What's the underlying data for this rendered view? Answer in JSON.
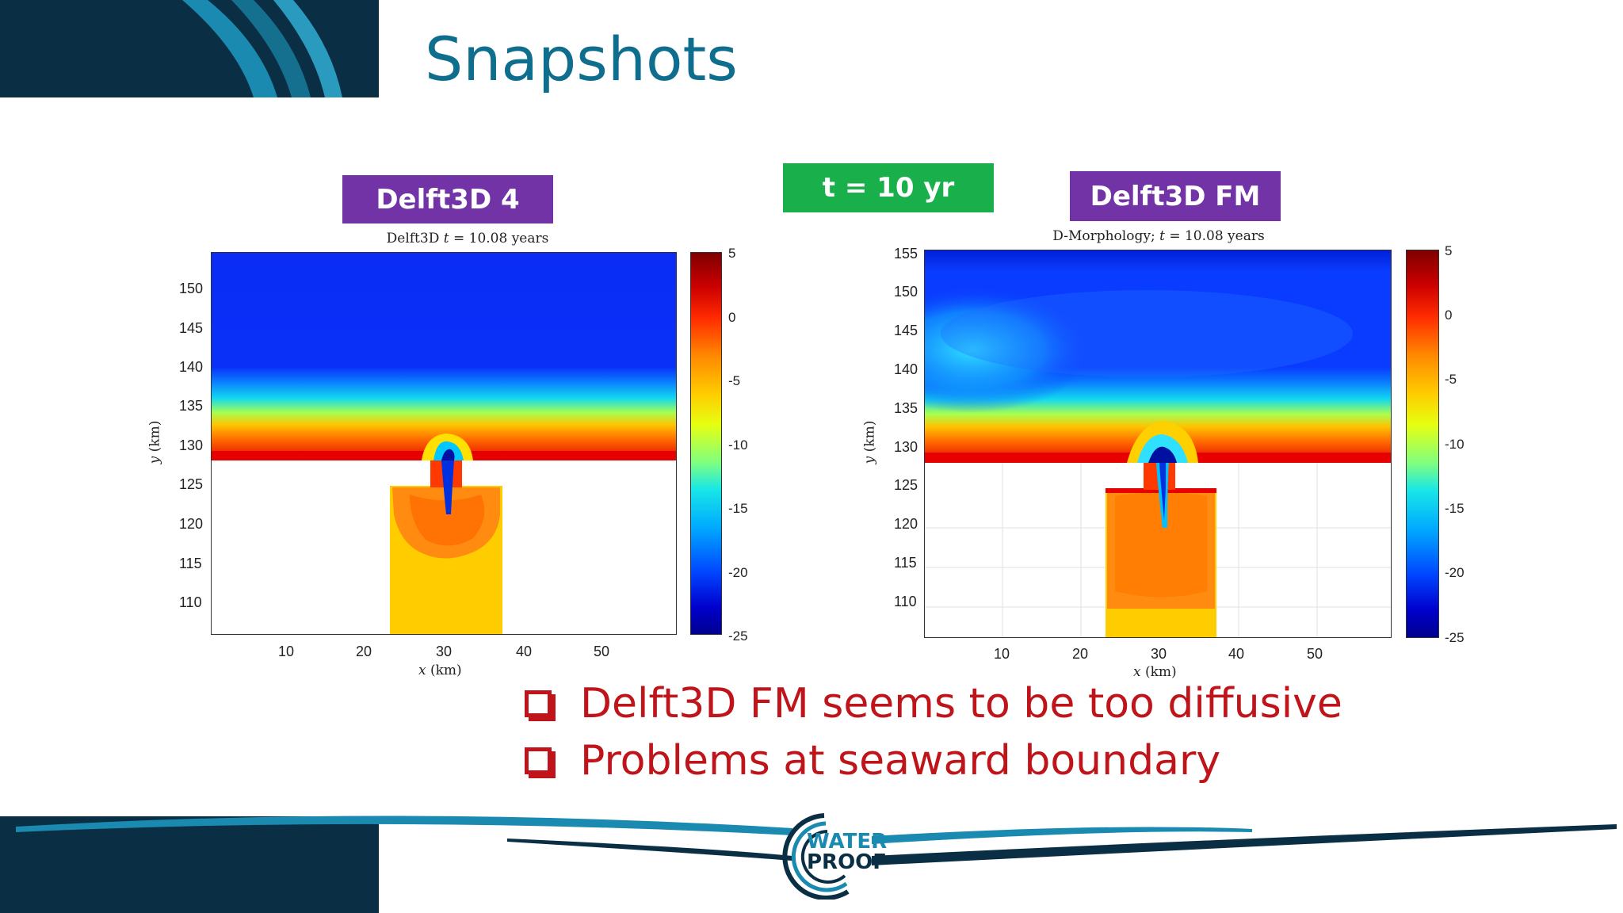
{
  "slide": {
    "title": "Snapshots"
  },
  "tags": {
    "left": "Delft3D 4",
    "center": "t = 10 yr",
    "right": "Delft3D FM"
  },
  "plots": {
    "left": {
      "title_model": "Delft3D",
      "title_t": "t",
      "title_rest": " = 10.08 years",
      "xlabel_var": "x",
      "xlabel_unit": " (km)",
      "ylabel_var": "y",
      "ylabel_unit": " (km)",
      "yticks": [
        "150",
        "145",
        "140",
        "135",
        "130",
        "125",
        "120",
        "115",
        "110"
      ],
      "xticks": [
        "10",
        "20",
        "30",
        "40",
        "50"
      ],
      "cbar_ticks": [
        "5",
        "0",
        "-5",
        "-10",
        "-15",
        "-20",
        "-25"
      ]
    },
    "right": {
      "title_model": "D-Morphology;",
      "title_t": "t",
      "title_rest": " = 10.08 years",
      "xlabel_var": "x",
      "xlabel_unit": " (km)",
      "ylabel_var": "y",
      "ylabel_unit": " (km)",
      "yticks": [
        "155",
        "150",
        "145",
        "140",
        "135",
        "130",
        "125",
        "120",
        "115",
        "110"
      ],
      "xticks": [
        "10",
        "20",
        "30",
        "40",
        "50"
      ],
      "cbar_ticks": [
        "5",
        "0",
        "-5",
        "-10",
        "-15",
        "-20",
        "-25"
      ]
    }
  },
  "bullets": [
    "Delft3D FM seems to be too diffusive",
    "Problems at seaward boundary"
  ],
  "logo": {
    "line1": "WATER",
    "line2": "PROOF"
  },
  "colors": {
    "title": "#0f6e8d",
    "purple_tag": "#7233a6",
    "green_tag": "#19b04b",
    "bullet": "#c0141b",
    "navy": "#0a2f44"
  }
}
